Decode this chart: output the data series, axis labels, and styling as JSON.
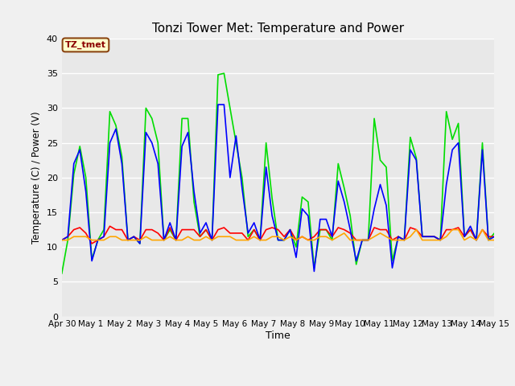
{
  "title": "Tonzi Tower Met: Temperature and Power",
  "xlabel": "Time",
  "ylabel": "Temperature (C) / Power (V)",
  "ylim": [
    0,
    40
  ],
  "yticks": [
    0,
    5,
    10,
    15,
    20,
    25,
    30,
    35,
    40
  ],
  "xtick_labels": [
    "Apr 30",
    "May 1",
    "May 2",
    "May 3",
    "May 4",
    "May 5",
    "May 6",
    "May 7",
    "May 8",
    "May 9",
    "May 10",
    "May 11",
    "May 12",
    "May 13",
    "May 14",
    "May 15"
  ],
  "legend_label": "TZ_tmet",
  "fig_bg_color": "#f0f0f0",
  "plot_bg_color": "#e8e8e8",
  "panel_T_color": "#00dd00",
  "battery_V_color": "#ff0000",
  "air_T_color": "#0000ff",
  "solar_V_color": "#ffa500",
  "panel_T": [
    6.2,
    11.0,
    20.5,
    24.5,
    20.0,
    8.2,
    11.0,
    12.5,
    29.5,
    27.5,
    23.0,
    11.0,
    11.5,
    10.5,
    30.0,
    28.5,
    25.0,
    11.0,
    12.5,
    11.0,
    28.5,
    28.5,
    16.5,
    11.5,
    12.5,
    11.0,
    34.8,
    35.0,
    30.0,
    25.0,
    20.0,
    11.5,
    12.5,
    11.0,
    25.0,
    17.0,
    11.0,
    11.0,
    12.5,
    10.0,
    17.2,
    16.5,
    7.0,
    12.5,
    12.5,
    11.0,
    22.0,
    18.5,
    14.5,
    7.5,
    11.0,
    11.0,
    28.5,
    22.5,
    21.5,
    8.0,
    11.5,
    11.0,
    25.8,
    22.8,
    11.5,
    11.5,
    11.5,
    11.0,
    29.5,
    25.5,
    27.8,
    11.5,
    12.5,
    11.0,
    25.0,
    11.0,
    12.0
  ],
  "battery_V": [
    11.0,
    11.5,
    12.5,
    12.8,
    12.0,
    10.5,
    11.0,
    11.5,
    13.0,
    12.5,
    12.5,
    11.0,
    11.5,
    11.0,
    12.5,
    12.5,
    12.0,
    11.0,
    12.8,
    11.0,
    12.5,
    12.5,
    12.5,
    11.5,
    12.5,
    11.0,
    12.5,
    12.8,
    12.0,
    12.0,
    12.0,
    11.0,
    12.5,
    11.0,
    12.5,
    12.8,
    12.5,
    11.5,
    12.5,
    11.0,
    11.5,
    11.0,
    11.5,
    12.5,
    12.5,
    11.5,
    12.8,
    12.5,
    12.0,
    11.0,
    11.0,
    11.0,
    12.8,
    12.5,
    12.5,
    11.0,
    11.5,
    11.0,
    12.8,
    12.5,
    11.5,
    11.5,
    11.5,
    11.0,
    12.5,
    12.5,
    12.8,
    11.5,
    12.5,
    11.0,
    12.5,
    11.5,
    11.5
  ],
  "air_T": [
    11.0,
    11.5,
    22.0,
    24.0,
    18.0,
    8.0,
    11.0,
    11.5,
    25.0,
    27.0,
    22.0,
    11.0,
    11.5,
    10.5,
    26.5,
    25.0,
    22.0,
    11.0,
    13.5,
    11.0,
    24.5,
    26.5,
    18.0,
    12.0,
    13.5,
    11.0,
    30.5,
    30.5,
    20.0,
    26.0,
    18.5,
    12.0,
    13.5,
    11.0,
    21.5,
    14.5,
    11.0,
    11.0,
    12.5,
    8.5,
    15.5,
    14.5,
    6.5,
    14.0,
    14.0,
    11.5,
    19.5,
    16.5,
    12.5,
    8.0,
    11.0,
    11.0,
    15.5,
    19.0,
    16.0,
    7.0,
    11.5,
    11.0,
    24.0,
    22.5,
    11.5,
    11.5,
    11.5,
    11.0,
    19.0,
    24.0,
    25.0,
    11.5,
    13.0,
    11.0,
    24.0,
    11.0,
    11.5
  ],
  "solar_V": [
    11.0,
    11.0,
    11.5,
    11.5,
    11.5,
    11.0,
    11.0,
    11.0,
    11.5,
    11.5,
    11.0,
    11.0,
    11.0,
    11.0,
    11.5,
    11.0,
    11.0,
    11.0,
    11.5,
    11.0,
    11.0,
    11.5,
    11.0,
    11.0,
    11.5,
    11.0,
    11.5,
    11.5,
    11.5,
    11.0,
    11.0,
    11.0,
    11.5,
    11.0,
    11.0,
    11.5,
    11.5,
    11.0,
    11.5,
    11.0,
    11.5,
    11.0,
    11.0,
    11.5,
    11.5,
    11.0,
    11.5,
    12.0,
    11.0,
    11.0,
    11.0,
    11.0,
    11.5,
    12.0,
    11.5,
    11.0,
    11.0,
    11.0,
    11.5,
    12.5,
    11.0,
    11.0,
    11.0,
    11.0,
    11.5,
    12.5,
    12.5,
    11.0,
    11.5,
    11.0,
    12.5,
    11.0,
    11.0
  ]
}
